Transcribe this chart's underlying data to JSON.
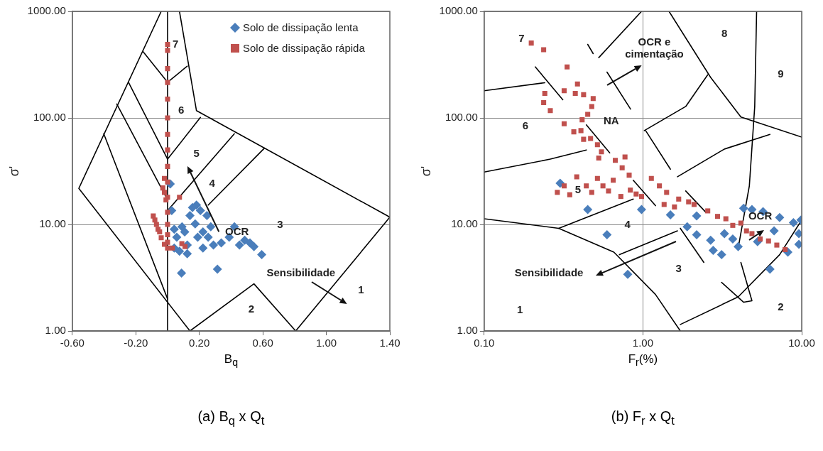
{
  "chart_data": [
    {
      "type": "scatter",
      "title": "(a) B$_{q}$ x Q$_{t}$",
      "xlabel": "B$_{q}$",
      "ylabel": "σ'",
      "log": "y",
      "grid": "y",
      "legend": "top right",
      "xlim": [
        -0.6,
        1.4
      ],
      "xticks": [
        {
          "value": -0.6,
          "label": "-0.60"
        },
        {
          "value": -0.2,
          "label": "-0.20"
        },
        {
          "value": 0.2,
          "label": "0.20"
        },
        {
          "value": 0.6,
          "label": "0.60"
        },
        {
          "value": 1,
          "label": "1.00"
        },
        {
          "value": 1.4,
          "label": "1.40"
        }
      ],
      "ylim": [
        1,
        1000
      ],
      "yticks": [
        {
          "value": 1,
          "label": "1.00"
        },
        {
          "value": 10,
          "label": "10.00"
        },
        {
          "value": 100,
          "label": "100.00"
        },
        {
          "value": 1000,
          "label": "1000.00"
        }
      ],
      "annotations": [
        "7",
        "6",
        "5",
        "4",
        "3",
        "OCR",
        "Sensibilidade",
        "2",
        "1"
      ],
      "series": [
        {
          "type": "line",
          "color": "#000000",
          "marker": "none",
          "x": [
            0.075,
            0.182,
            1.4,
            0.807,
            0.544,
            0.141,
            -0.559,
            -0.04
          ],
          "values": [
            1000,
            117,
            11.7,
            1,
            2.77,
            1,
            21.8,
            1000
          ]
        },
        {
          "type": "line",
          "color": "#000000",
          "marker": "none",
          "x": [
            0,
            0
          ],
          "values": [
            1,
            1000
          ]
        },
        {
          "type": "line",
          "color": "#000000",
          "marker": "none",
          "x": [
            -0.156,
            0,
            0.124
          ],
          "values": [
            422,
            216,
            306
          ]
        },
        {
          "type": "line",
          "color": "#000000",
          "marker": "none",
          "x": [
            -0.246,
            0,
            0.207
          ],
          "values": [
            216,
            41,
            101
          ]
        },
        {
          "type": "line",
          "color": "#000000",
          "marker": "none",
          "x": [
            -0.32,
            0
          ],
          "values": [
            135,
            17
          ]
        },
        {
          "type": "line",
          "color": "#000000",
          "marker": "none",
          "x": [
            0,
            0.421
          ],
          "values": [
            13.5,
            71
          ]
        },
        {
          "type": "line",
          "color": "#000000",
          "marker": "none",
          "x": [
            -0.402,
            0
          ],
          "values": [
            71,
            2.0
          ]
        },
        {
          "type": "line",
          "color": "#000000",
          "marker": "none",
          "x": [
            0.256,
            0.61
          ],
          "values": [
            15.2,
            52
          ]
        },
        {
          "name": "Solo de dissipação lenta",
          "type": "scatter",
          "marker": "diamond",
          "color": "#4a7ebb",
          "x": [
            0.026,
            0.017,
            0.042,
            0.058,
            0.075,
            0.088,
            0.124,
            0.141,
            0.157,
            0.182,
            0.207,
            0.174,
            0.223,
            0.248,
            0.272,
            0.223,
            0.289,
            0.338,
            0.314,
            0.388,
            0.421,
            0.453,
            0.486,
            0.519,
            0.544,
            0.593,
            0.108,
            0.19,
            0.256,
            0.124,
            0.042,
            0.091
          ],
          "values": [
            13.5,
            24,
            9.0,
            7.6,
            5.6,
            3.5,
            6.4,
            12.1,
            14.4,
            15.2,
            13.5,
            10.1,
            8.5,
            12.1,
            9.5,
            6.0,
            6.4,
            6.7,
            3.8,
            7.6,
            9.5,
            6.4,
            7.1,
            6.7,
            6.2,
            5.2,
            8.5,
            7.6,
            7.6,
            5.3,
            6.0,
            9.5
          ]
        },
        {
          "name": "Solo de dissipação rápida",
          "type": "scatter",
          "marker": "square",
          "color": "#c0504d",
          "x": [
            0,
            0,
            0,
            0,
            0,
            0,
            0,
            0,
            0,
            0,
            0,
            0,
            0,
            0,
            0,
            0,
            -0.02,
            -0.03,
            -0.02,
            -0.01,
            -0.09,
            -0.08,
            -0.07,
            -0.06,
            -0.05,
            -0.04,
            -0.02,
            0.03,
            0.075,
            0.09,
            0.11
          ],
          "values": [
            490,
            430,
            290,
            215,
            150,
            100,
            70,
            50,
            35,
            25,
            18,
            13,
            10,
            8,
            6.8,
            6.0,
            27,
            22,
            20,
            17,
            12,
            11,
            10,
            9,
            8.5,
            7.5,
            6.5,
            6.0,
            18,
            6.6,
            6.2
          ]
        }
      ]
    },
    {
      "type": "scatter",
      "title": "(b) F$_{r}$ x Q$_{t}$",
      "xlabel": "F$_{r}$(%)",
      "ylabel": "σ'",
      "log": "xy",
      "grid": true,
      "xlim": [
        0.1,
        10
      ],
      "xticks": [
        {
          "value": 0.1,
          "label": "0.10"
        },
        {
          "value": 1,
          "label": "1.00"
        },
        {
          "value": 10,
          "label": "10.00"
        }
      ],
      "ylim": [
        1,
        1000
      ],
      "yticks": [
        {
          "value": 1,
          "label": "1.00"
        },
        {
          "value": 10,
          "label": "10.00"
        },
        {
          "value": 100,
          "label": "100.00"
        },
        {
          "value": 1000,
          "label": "1000.00"
        }
      ],
      "annotations": [
        "7",
        "8",
        "9",
        "6",
        "NA",
        "5",
        "4",
        "3",
        "1",
        "2",
        "OCR e cimentação",
        "OCR",
        "Sensibilidade"
      ],
      "series": [
        {
          "type": "line",
          "color": "#000000",
          "marker": "none",
          "x": [
            0.1,
            0.295,
            0.656,
            1.2,
            1.72
          ],
          "values": [
            11.3,
            9.2,
            5.5,
            2.2,
            1
          ]
        },
        {
          "type": "line",
          "color": "#000000",
          "marker": "none",
          "x": [
            1.72,
            3.98,
            7.26,
            10
          ],
          "values": [
            1.15,
            2.09,
            5.2,
            11
          ]
        },
        {
          "type": "line",
          "color": "#000000",
          "marker": "none",
          "x": [
            1.65,
            3.26,
            6.31
          ],
          "values": [
            28,
            51,
            70
          ]
        },
        {
          "type": "line",
          "color": "#000000",
          "marker": "none",
          "x": [
            3.98,
            4.68,
            5.06,
            5.2
          ],
          "values": [
            6.0,
            23,
            128,
            1000
          ]
        },
        {
          "type": "line",
          "color": "#000000",
          "marker": "none",
          "x": [
            1.46,
            2.67,
            4.14,
            10
          ],
          "values": [
            1000,
            240,
            102,
            66
          ]
        },
        {
          "type": "line",
          "color": "#000000",
          "marker": "none",
          "x": [
            1.02,
            1.86,
            2.56
          ],
          "values": [
            76,
            128,
            254
          ]
        },
        {
          "type": "line",
          "color": "#000000",
          "marker": "none",
          "x": [
            0.527,
            0.98
          ],
          "values": [
            368,
            1000
          ]
        },
        {
          "type": "line",
          "color": "#000000",
          "marker": "none",
          "x": [
            0.1,
            0.241
          ],
          "values": [
            180,
            214
          ]
        },
        {
          "type": "line",
          "color": "#000000",
          "marker": "none",
          "x": [
            0.1,
            0.261,
            0.44
          ],
          "values": [
            31,
            41,
            50
          ]
        },
        {
          "type": "line",
          "color": "#000000",
          "marker": "none",
          "x": [
            0.295,
            0.869
          ],
          "values": [
            9.2,
            17.3
          ]
        },
        {
          "type": "line",
          "color": "#000000",
          "marker": "none",
          "x": [
            0.711,
            1.65
          ],
          "values": [
            5.2,
            8.7
          ]
        },
        {
          "type": "line",
          "color": "#000000",
          "marker": "none",
          "x": [
            0.21,
            0.313
          ],
          "values": [
            301,
            148
          ]
        },
        {
          "type": "line",
          "color": "#000000",
          "marker": "none",
          "x": [
            0.594,
            0.836
          ],
          "values": [
            269,
            121
          ]
        },
        {
          "type": "line",
          "color": "#000000",
          "marker": "none",
          "x": [
            0.449,
            0.486
          ],
          "values": [
            490,
            401
          ]
        },
        {
          "type": "line",
          "color": "#000000",
          "marker": "none",
          "x": [
            0.44,
            0.618
          ],
          "values": [
            86,
            47
          ]
        },
        {
          "type": "line",
          "color": "#000000",
          "marker": "none",
          "x": [
            0.869,
            1.2
          ],
          "values": [
            26,
            15
          ]
        },
        {
          "type": "line",
          "color": "#000000",
          "marker": "none",
          "x": [
            1.04,
            1.49
          ],
          "values": [
            76,
            33
          ]
        },
        {
          "type": "line",
          "color": "#000000",
          "marker": "none",
          "x": [
            1.72,
            2.42
          ],
          "values": [
            9.2,
            4.4
          ]
        },
        {
          "type": "line",
          "color": "#000000",
          "marker": "none",
          "x": [
            1.86,
            2.49
          ],
          "values": [
            20.6,
            13
          ]
        },
        {
          "type": "line",
          "color": "#000000",
          "marker": "none",
          "x": [
            3.13,
            4.31,
            4.86,
            4.14
          ],
          "values": [
            2.86,
            1.86,
            1.92,
            4.4
          ]
        },
        {
          "type": "scatter",
          "marker": "diamond",
          "color": "#4a7ebb",
          "x": [
            0.301,
            0.449,
            0.594,
            0.802,
            0.98,
            1.49,
            1.9,
            2.18,
            2.18,
            2.67,
            3.13,
            3.98,
            4.86,
            5.71,
            7.26,
            8.87,
            9.6,
            9.6,
            8.18,
            6.31,
            5.27,
            3.68,
            4.31,
            3.26,
            6.7,
            2.77,
            9.9
          ],
          "values": [
            24.4,
            13.8,
            8.0,
            3.4,
            13.8,
            12.3,
            9.5,
            12,
            8.0,
            7.1,
            5.2,
            6.2,
            13.8,
            13.2,
            11.6,
            10.4,
            8.2,
            6.5,
            5.5,
            3.8,
            6.9,
            7.3,
            14.2,
            8.2,
            8.7,
            5.7,
            11
          ]
        },
        {
          "type": "scatter",
          "marker": "square",
          "color": "#c0504d",
          "x": [
            0.198,
            0.237,
            0.333,
            0.387,
            0.319,
            0.241,
            0.237,
            0.261,
            0.319,
            0.375,
            0.423,
            0.486,
            0.476,
            0.449,
            0.414,
            0.407,
            0.367,
            0.423,
            0.468,
            0.517,
            0.548,
            0.527,
            0.771,
            0.67,
            0.74,
            0.819,
            0.383,
            0.289,
            0.319,
            0.346,
            0.44,
            0.476,
            0.517,
            0.56,
            0.607,
            0.65,
            0.726,
            0.833,
            0.906,
            0.98,
            1.13,
            1.27,
            1.41,
            1.36,
            1.58,
            1.68,
            1.94,
            2.1,
            2.56,
            2.95,
            3.33,
            3.68,
            4.14,
            4.49,
            4.86,
            5.48,
            6.18,
            6.97,
            7.86
          ],
          "values": [
            504,
            437,
            301,
            208,
            180,
            170,
            139,
            117,
            88,
            170,
            165,
            152,
            128,
            108,
            96,
            76,
            74,
            63,
            64,
            56,
            48,
            42,
            43,
            40,
            34,
            29,
            28,
            20,
            23,
            19,
            23,
            20,
            27,
            23,
            20.6,
            26,
            18.3,
            21,
            19.3,
            18.3,
            27,
            23,
            20,
            15.4,
            14.6,
            17.3,
            16.3,
            15.4,
            13.4,
            11.9,
            11.3,
            9.8,
            10.3,
            8.7,
            8.2,
            7.3,
            7.0,
            6.4,
            5.8
          ]
        }
      ]
    }
  ]
}
